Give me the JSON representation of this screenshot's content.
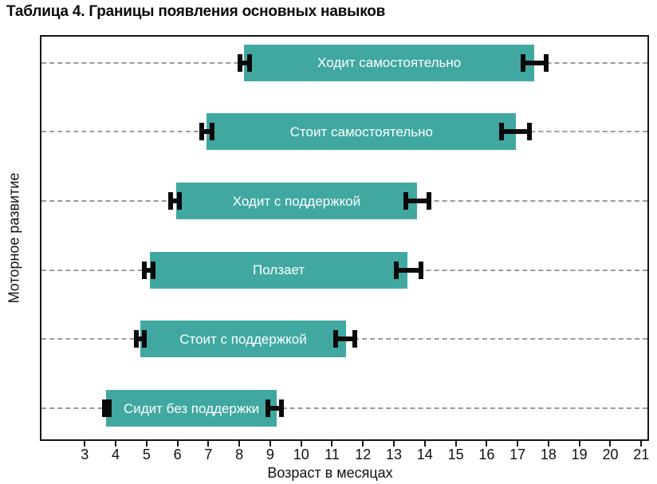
{
  "title": "Таблица 4. Границы появления основных навыков",
  "chart_data": {
    "type": "bar",
    "subtype": "horizontal-range-bars-with-error-bars",
    "title": "Таблица 4. Границы появления основных навыков",
    "xlabel": "Возраст в месяцах",
    "ylabel": "Моторное развитие",
    "x_unit": "месяцы",
    "xlim": [
      1.6,
      21.2
    ],
    "x_ticks": [
      3,
      4,
      5,
      6,
      7,
      8,
      9,
      10,
      11,
      12,
      13,
      14,
      15,
      16,
      17,
      18,
      19,
      20,
      21
    ],
    "grid": "dashed horizontal gridlines per row",
    "legend": "none",
    "bar_color": "#40a8a1",
    "bar_text_color": "#ffffff",
    "error_bar_color": "#0a0a0a",
    "series": [
      {
        "label": "Ходит самостоятельно",
        "start": 8.15,
        "end": 17.55,
        "start_whisker": [
          7.95,
          8.4
        ],
        "end_whisker": [
          17.1,
          18.0
        ]
      },
      {
        "label": "Стоит самостоятельно",
        "start": 6.95,
        "end": 16.95,
        "start_whisker": [
          6.7,
          7.2
        ],
        "end_whisker": [
          16.4,
          17.45
        ]
      },
      {
        "label": "Ходит с поддержкой",
        "start": 5.95,
        "end": 13.75,
        "start_whisker": [
          5.7,
          6.15
        ],
        "end_whisker": [
          13.3,
          14.2
        ]
      },
      {
        "label": "Ползает",
        "start": 5.1,
        "end": 13.45,
        "start_whisker": [
          4.85,
          5.3
        ],
        "end_whisker": [
          13.0,
          13.95
        ]
      },
      {
        "label": "Стоит с поддержкой",
        "start": 4.8,
        "end": 11.45,
        "start_whisker": [
          4.6,
          5.0
        ],
        "end_whisker": [
          11.05,
          11.8
        ]
      },
      {
        "label": "Сидит без поддержки",
        "start": 3.7,
        "end": 9.2,
        "start_whisker": [
          3.55,
          3.85
        ],
        "end_whisker": [
          8.85,
          9.45
        ]
      }
    ]
  }
}
